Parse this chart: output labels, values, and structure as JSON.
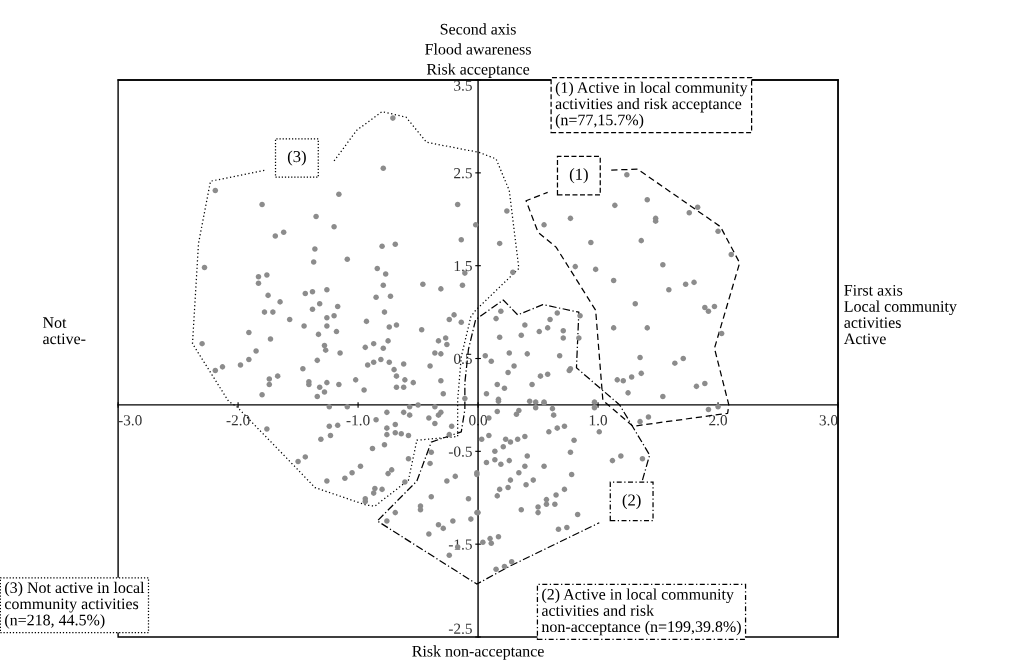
{
  "chart_data": {
    "type": "scatter",
    "title": "Second axis\nFlood awareness\nRisk acceptance",
    "xlim": [
      -3.0,
      3.0
    ],
    "ylim": [
      -2.5,
      3.5
    ],
    "xticks": [
      {
        "value": -3,
        "label": "-3.0"
      },
      {
        "value": -2,
        "label": "-2.0"
      },
      {
        "value": -1,
        "label": "-1.0"
      },
      {
        "value": 0,
        "label": "0.0"
      },
      {
        "value": 1,
        "label": "1.0"
      },
      {
        "value": 2,
        "label": "2.0"
      },
      {
        "value": 3,
        "label": "3.0"
      }
    ],
    "yticks": [
      3.5,
      2.5,
      1.5,
      0.5,
      -0.5,
      -1.5,
      -2.5
    ],
    "grid": false,
    "legend": false,
    "marker": "circle",
    "annotations": [
      "First axis\nLocal community\nactivities\nActive",
      "Not\nactive-",
      "Risk non-acceptance",
      "(1) Active in local community\nactivities and risk acceptance\n(n=77,15.7%)",
      "(2) Active in local community\nactivities and risk\nnon-acceptance (n=199,39.8%)",
      "(3) Not active in local\ncommunity activities\n(n=218, 44.5%)",
      {
        "text": "(1)",
        "x": 0.84,
        "y": 2.47
      },
      {
        "text": "(2)",
        "x": 1.28,
        "y": -1.04
      },
      {
        "text": "(3)",
        "x": -1.51,
        "y": 2.66
      }
    ],
    "series": [
      {
        "color": "#8c8c8c",
        "x": [
          -0.71,
          -0.79,
          -2.19,
          -1.16,
          -1.8,
          -0.17,
          -1.35,
          -1.2,
          -0.02,
          -1.69,
          -1.62,
          -0.8,
          -0.69,
          -0.14,
          -1.36,
          -1.37,
          -1.09,
          -2.28,
          -0.84,
          -0.77,
          -0.11,
          -1.83,
          -1.76,
          -1.83,
          -0.79,
          -0.46,
          -0.31,
          -0.13,
          -1.44,
          -1.38,
          -1.26,
          -1.75,
          -0.85,
          -0.73,
          -1.65,
          -1.38,
          -1.32,
          -1.17,
          -1.78,
          -1.71,
          -1.26,
          -1.2,
          -0.78,
          -0.2,
          -0.24,
          -0.14,
          -1.57,
          -0.93,
          -0.74,
          -0.68,
          -1.45,
          -1.26,
          -1.18,
          -0.47,
          -1.91,
          -1.33,
          -1.73,
          -2.3,
          -0.33,
          -0.27,
          -0.26,
          -0.87,
          -0.94,
          -0.75,
          -1.28,
          -1.27,
          -0.79,
          -1.85,
          -1.15,
          -0.36,
          -0.31,
          -1.91,
          -1.98,
          -2.13,
          -2.19,
          -1.34,
          -0.81,
          -0.87,
          -0.92,
          -0.74,
          -0.62,
          -0.4,
          -1.46,
          -0.7,
          -0.68,
          -0.61,
          -0.54,
          -0.68,
          -0.62,
          -1.67,
          -1.74,
          -1.74,
          -1.41,
          -1.41,
          -1.26,
          -1.32,
          -1.28,
          -1.34,
          -1.16,
          -1.02,
          -0.95,
          -0.31,
          -0.29,
          -1.8,
          -0.11,
          -1.24,
          -1.09,
          -0.57,
          -0.5,
          -0.57,
          -0.62,
          -0.36,
          -0.31,
          -0.33,
          -0.36,
          -0.41,
          -1.76,
          -1.24,
          -1.17,
          -1.31,
          -1.23,
          -0.85,
          -0.76,
          -0.69,
          -0.76,
          -0.76,
          -0.69,
          -0.64,
          -0.58,
          -0.22,
          -0.24,
          -0.88,
          -0.78,
          -0.58,
          -1.5,
          -1.44,
          -0.98,
          -1.05,
          -1.11,
          -1.26,
          -0.72,
          -0.75,
          -0.61,
          -0.86,
          -0.8,
          -0.87,
          -0.94,
          -0.94,
          0.24,
          0.18,
          0.29
        ],
        "values": [
          3.09,
          2.55,
          2.31,
          2.27,
          2.16,
          2.16,
          2.03,
          1.92,
          1.94,
          1.82,
          1.86,
          1.71,
          1.73,
          1.78,
          1.68,
          1.54,
          1.57,
          1.48,
          1.47,
          1.41,
          1.42,
          1.38,
          1.4,
          1.31,
          1.29,
          1.3,
          1.25,
          1.29,
          1.2,
          1.22,
          1.24,
          1.18,
          1.16,
          1.17,
          1.11,
          1.03,
          1.09,
          1.06,
          1.0,
          1.0,
          0.94,
          0.96,
          1.0,
          0.97,
          0.92,
          0.89,
          0.92,
          0.9,
          0.84,
          0.86,
          0.85,
          0.85,
          0.79,
          0.81,
          0.78,
          0.76,
          0.71,
          0.66,
          0.69,
          0.72,
          0.65,
          0.66,
          0.62,
          0.69,
          0.64,
          0.59,
          0.61,
          0.58,
          0.56,
          0.56,
          0.55,
          0.49,
          0.43,
          0.41,
          0.37,
          0.48,
          0.49,
          0.46,
          0.43,
          0.46,
          0.44,
          0.42,
          0.39,
          0.38,
          0.31,
          0.27,
          0.24,
          0.19,
          0.19,
          0.31,
          0.28,
          0.22,
          0.25,
          0.22,
          0.24,
          0.19,
          0.14,
          0.09,
          0.22,
          0.27,
          0.16,
          0.26,
          0.12,
          0.11,
          0.07,
          -0.02,
          -0.02,
          -0.02,
          0.0,
          -0.11,
          -0.08,
          -0.02,
          -0.08,
          -0.11,
          -0.2,
          -0.14,
          -0.26,
          -0.23,
          -0.22,
          -0.37,
          -0.33,
          -0.16,
          -0.08,
          -0.21,
          -0.25,
          -0.32,
          -0.3,
          -0.31,
          -0.33,
          -0.23,
          -0.32,
          -0.47,
          -0.43,
          -0.58,
          -0.61,
          -0.56,
          -0.66,
          -0.73,
          -0.79,
          -0.82,
          -0.7,
          -0.74,
          -0.83,
          -0.9,
          -0.91,
          -0.95,
          -1.01,
          -1.04,
          2.09,
          1.74,
          1.43
        ]
      },
      {
        "color": "#8c8c8c",
        "x": [
          1.24,
          1.41,
          1.14,
          0.77,
          1.48,
          1.48,
          1.76,
          1.83,
          0.55,
          2.0,
          0.94,
          1.36,
          2.11,
          1.54,
          0.81,
          0.98,
          1.13,
          1.73,
          1.8,
          1.59,
          1.31,
          1.92,
          1.97,
          1.89,
          1.13,
          1.41,
          2.03,
          1.35,
          1.64,
          1.71,
          1.16,
          1.21,
          1.28,
          1.36,
          1.25,
          1.82,
          1.89,
          1.54,
          1.92,
          2.0,
          1.35,
          1.42
        ],
        "values": [
          2.48,
          2.21,
          2.15,
          2.01,
          2.01,
          1.98,
          2.07,
          2.13,
          1.94,
          1.87,
          1.75,
          1.77,
          1.62,
          1.51,
          1.49,
          1.46,
          1.34,
          1.3,
          1.32,
          1.24,
          1.09,
          1.01,
          1.06,
          1.05,
          0.83,
          0.83,
          0.77,
          0.51,
          0.45,
          0.5,
          0.27,
          0.26,
          0.3,
          0.34,
          0.13,
          0.2,
          0.23,
          0.09,
          -0.05,
          -0.02,
          -0.18,
          -0.13
        ]
      },
      {
        "color": "#8c8c8c",
        "x": [
          -0.39,
          -0.4,
          -0.26,
          -0.19,
          -0.39,
          -0.48,
          -0.48,
          -0.69,
          -0.76,
          -0.08,
          -0.06,
          -0.21,
          -0.33,
          -0.29,
          -0.41,
          -0.17,
          -0.24,
          -0.01,
          -0.01,
          0.19,
          0.15,
          0.39,
          0.36,
          0.18,
          0.6,
          0.58,
          0.51,
          0.66,
          0.71,
          0.71,
          0.85,
          0.84,
          0.26,
          0.41,
          0.06,
          0.11,
          0.3,
          0.25,
          0.68,
          0.77,
          0.76,
          0.58,
          0.52,
          0.45,
          0.16,
          0.22,
          0.07,
          0.17,
          0.48,
          0.55,
          0.97,
          0.17,
          0.43,
          0.55,
          0.48,
          0.62,
          0.63,
          0.97,
          0.09,
          0.16,
          0.32,
          0.34,
          0.59,
          0.66,
          0.72,
          1.01,
          0.03,
          0.09,
          0.23,
          0.27,
          0.33,
          0.39,
          0.8,
          0.14,
          0.21,
          0.07,
          0.14,
          0.19,
          0.26,
          0.41,
          0.77,
          1.12,
          1.19,
          1.37,
          0.34,
          0.39,
          0.55,
          -0.01,
          0.27,
          0.25,
          0.4,
          0.46,
          0.78,
          0.18,
          0.16,
          0.65,
          0.72,
          0.57,
          0.5,
          0.5,
          0.57,
          0.64,
          0.36,
          0.0,
          0.83,
          0.67,
          0.74,
          0.04,
          0.1,
          0.17,
          0.11,
          0.15,
          0.22,
          0.28
        ],
        "values": [
          -0.51,
          -0.63,
          -0.82,
          -0.77,
          -0.99,
          -1.09,
          -1.13,
          -1.16,
          -1.25,
          -1.01,
          -1.23,
          -1.25,
          -1.29,
          -1.33,
          -1.39,
          -1.53,
          -1.62,
          -0.73,
          -1.16,
          1.01,
          0.93,
          0.86,
          0.75,
          0.73,
          0.92,
          0.83,
          0.79,
          0.99,
          0.8,
          0.72,
          0.96,
          0.72,
          0.56,
          0.55,
          0.53,
          0.47,
          0.42,
          0.35,
          0.53,
          0.39,
          0.37,
          0.33,
          0.31,
          0.22,
          0.22,
          0.18,
          0.12,
          0.06,
          0.03,
          0.03,
          0.03,
          0.04,
          0.04,
          0.02,
          -0.03,
          -0.04,
          -0.11,
          -0.03,
          -0.14,
          -0.07,
          -0.1,
          -0.06,
          -0.29,
          -0.25,
          -0.23,
          -0.29,
          -0.37,
          -0.33,
          -0.37,
          -0.4,
          -0.37,
          -0.34,
          -0.38,
          -0.5,
          -0.45,
          -0.62,
          -0.59,
          -0.64,
          -0.6,
          -0.55,
          -0.51,
          -0.6,
          -0.55,
          -0.58,
          -0.73,
          -0.66,
          -0.66,
          -0.75,
          -0.81,
          -0.89,
          -0.86,
          -0.81,
          -0.75,
          -0.91,
          -0.98,
          -0.97,
          -0.91,
          -1.02,
          -1.1,
          -1.16,
          -1.07,
          -1.07,
          -1.13,
          -1.16,
          -1.18,
          -1.34,
          -1.32,
          -1.48,
          -1.44,
          -1.42,
          -1.49,
          -1.77,
          -1.74,
          -1.69
        ]
      },
      {
        "type": "line",
        "color": "#000000",
        "line_style": "dashed",
        "marker": "none",
        "x": [
          1.11,
          1.33,
          2.02,
          2.18,
          1.97,
          2.09,
          2.08,
          1.29,
          1.04,
          0.98,
          0.65,
          0.5,
          0.4,
          0.58
        ],
        "values": [
          2.53,
          2.54,
          1.92,
          1.53,
          0.61,
          0.0,
          -0.09,
          -0.23,
          0.05,
          1.02,
          1.7,
          1.86,
          2.2,
          2.29
        ]
      },
      {
        "type": "line",
        "color": "#000000",
        "line_style": "dashdot",
        "marker": "none",
        "x": [
          1.37,
          1.43,
          1.18,
          0.82,
          0.84,
          0.54,
          0.33,
          0.21,
          -0.02,
          -0.08,
          -0.11,
          -0.11,
          -0.14,
          -0.39,
          -0.51,
          -0.84,
          -0.01,
          0.26,
          1.01
        ],
        "values": [
          -0.81,
          -0.54,
          0.0,
          0.4,
          1.0,
          1.08,
          0.97,
          1.13,
          0.92,
          0.6,
          0.24,
          -0.05,
          -0.29,
          -0.4,
          -0.82,
          -1.25,
          -1.93,
          -1.74,
          -1.27
        ]
      },
      {
        "type": "line",
        "color": "#000000",
        "line_style": "dotted",
        "marker": "none",
        "x": [
          -1.2,
          -1.01,
          -0.8,
          -0.6,
          -0.43,
          0.01,
          0.15,
          0.26,
          0.34,
          -0.02,
          -0.06,
          -0.14,
          -0.17,
          -0.17,
          -0.51,
          -0.58,
          -0.86,
          -0.93,
          -1.36,
          -1.53,
          -2.01,
          -2.08,
          -2.38,
          -2.33,
          -2.23,
          -1.77
        ],
        "values": [
          2.63,
          2.96,
          3.16,
          3.1,
          2.83,
          2.72,
          2.65,
          2.31,
          1.47,
          1.02,
          0.95,
          0.52,
          0.05,
          -0.34,
          -0.38,
          -0.81,
          -1.09,
          -1.08,
          -0.89,
          -0.66,
          -0.02,
          0.04,
          0.66,
          1.74,
          2.41,
          2.53
        ]
      }
    ]
  }
}
